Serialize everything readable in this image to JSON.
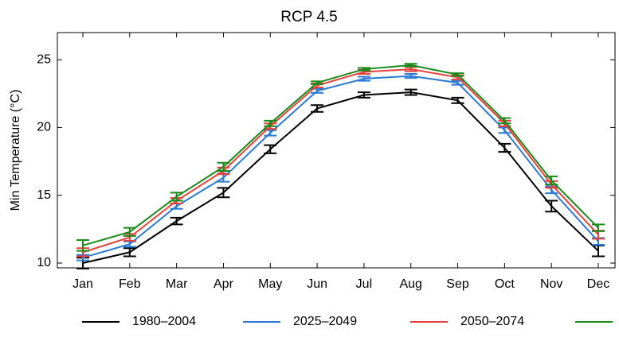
{
  "chart_data": {
    "type": "line",
    "title": "RCP 4.5",
    "y_label": "Min Temperature (°C)",
    "categories": [
      "Jan",
      "Feb",
      "Mar",
      "Apr",
      "May",
      "Jun",
      "Jul",
      "Aug",
      "Sep",
      "Oct",
      "Nov",
      "Dec"
    ],
    "series": [
      {
        "name": "1980–2004",
        "color": "#000000",
        "values": [
          10.0,
          10.8,
          13.1,
          15.2,
          18.4,
          21.4,
          22.4,
          22.6,
          22.0,
          18.5,
          14.2,
          10.9
        ],
        "errors": [
          0.4,
          0.3,
          0.25,
          0.35,
          0.3,
          0.25,
          0.2,
          0.2,
          0.2,
          0.3,
          0.4,
          0.4
        ]
      },
      {
        "name": "2025–2049",
        "color": "#2b7bd4",
        "values": [
          10.4,
          11.4,
          14.2,
          16.3,
          19.6,
          22.7,
          23.6,
          23.8,
          23.3,
          19.8,
          15.4,
          11.6
        ],
        "errors": [
          0.2,
          0.2,
          0.2,
          0.3,
          0.2,
          0.15,
          0.15,
          0.15,
          0.15,
          0.2,
          0.25,
          0.25
        ]
      },
      {
        "name": "2050–2074",
        "color": "#e8413c",
        "values": [
          10.8,
          11.9,
          14.6,
          16.8,
          20.1,
          23.1,
          24.1,
          24.3,
          23.7,
          20.3,
          15.8,
          12.1
        ],
        "errors": [
          0.3,
          0.25,
          0.2,
          0.25,
          0.2,
          0.15,
          0.15,
          0.15,
          0.15,
          0.2,
          0.25,
          0.3
        ]
      },
      {
        "color": "#1a8a1a",
        "values": [
          11.3,
          12.3,
          14.9,
          17.1,
          20.3,
          23.3,
          24.3,
          24.6,
          23.9,
          20.5,
          16.1,
          12.6
        ],
        "errors": [
          0.4,
          0.3,
          0.3,
          0.3,
          0.2,
          0.1,
          0.1,
          0.1,
          0.1,
          0.2,
          0.3,
          0.25
        ]
      }
    ],
    "ylim": [
      9.65,
      27
    ],
    "yticks": [
      10,
      15,
      20,
      25
    ],
    "grid": false
  }
}
